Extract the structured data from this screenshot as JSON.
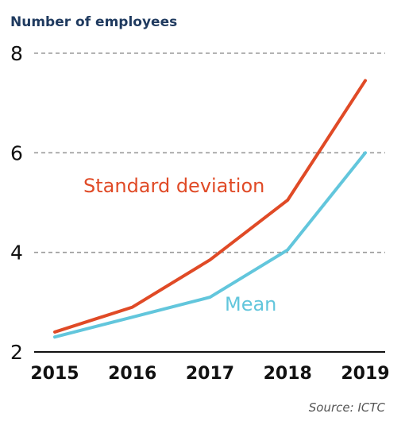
{
  "chart_data": {
    "type": "line",
    "ylabel": "Number of employees",
    "x": [
      "2015",
      "2016",
      "2017",
      "2018",
      "2019"
    ],
    "ylim": [
      2,
      8
    ],
    "yticks": [
      "2",
      "4",
      "6",
      "8"
    ],
    "grid": true,
    "series": [
      {
        "name": "Standard deviation",
        "values": [
          2.4,
          2.9,
          3.85,
          5.05,
          7.45
        ],
        "color": "#e04a26"
      },
      {
        "name": "Mean",
        "values": [
          2.3,
          2.7,
          3.1,
          4.05,
          6.0
        ],
        "color": "#62c6dc"
      }
    ],
    "source": "Source: ICTC"
  }
}
